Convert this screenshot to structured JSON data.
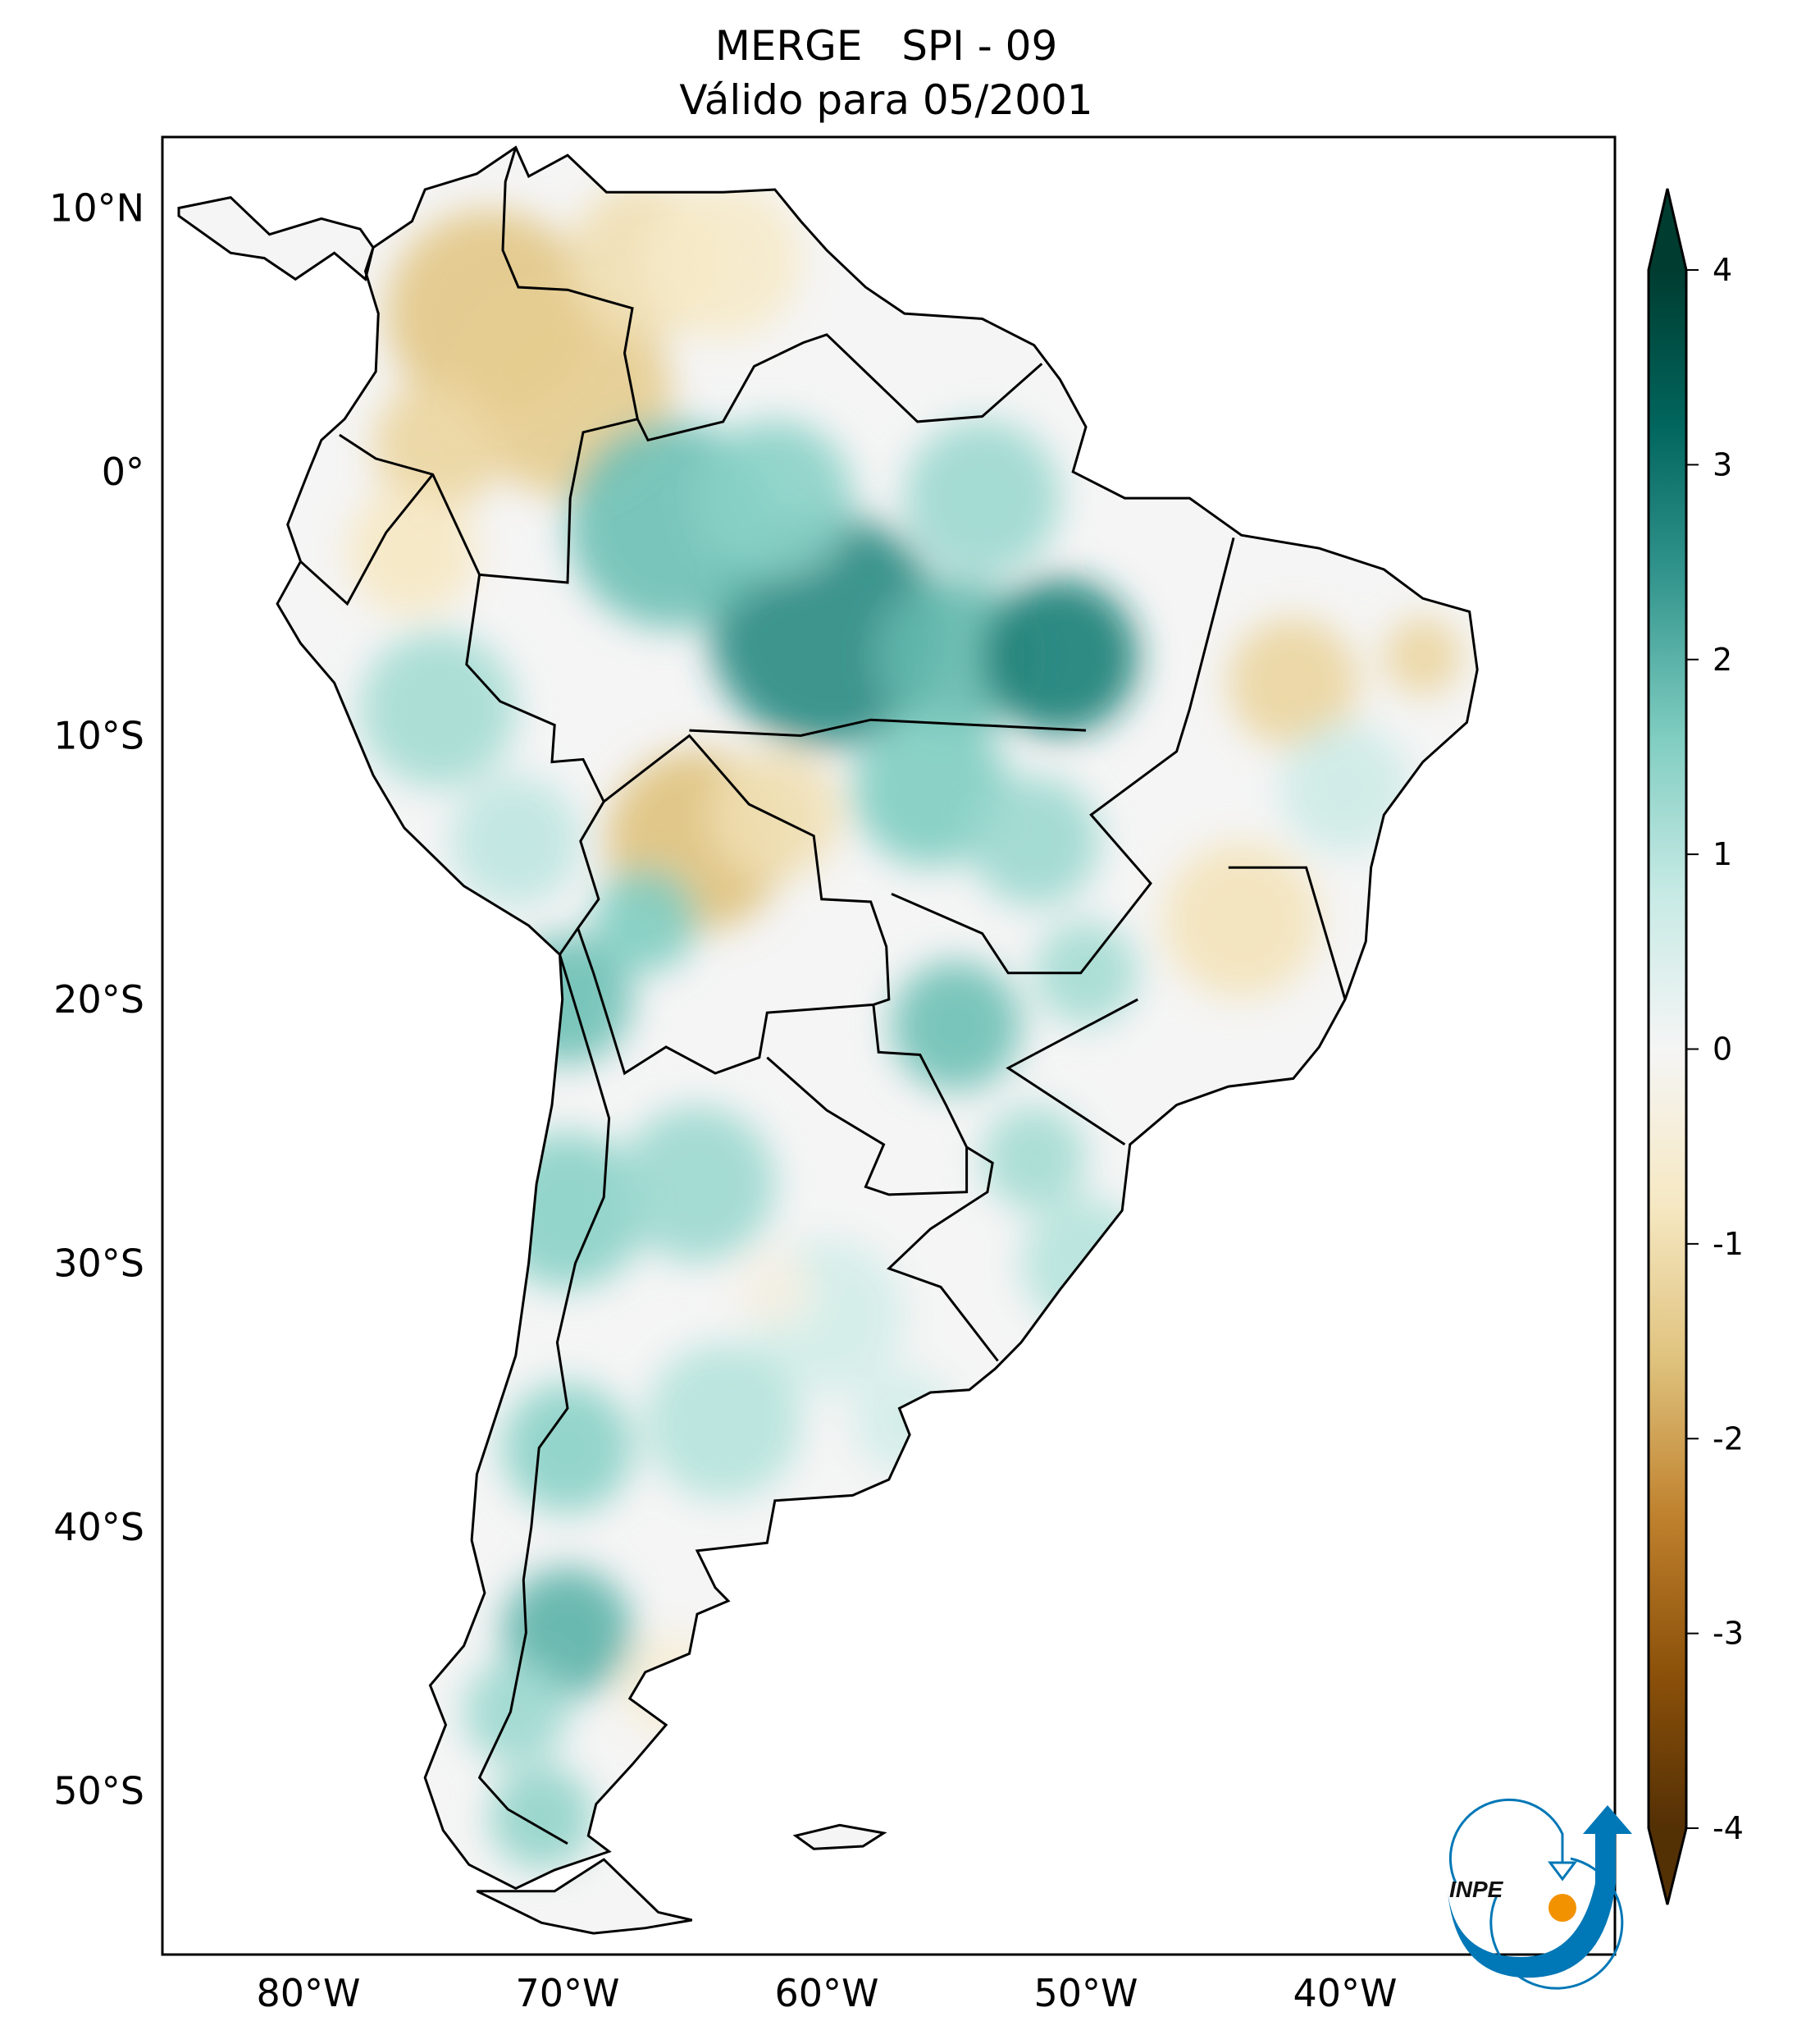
{
  "title": {
    "line1": "MERGE   SPI - 09",
    "line2": "Válido para 05/2001"
  },
  "chart_data": {
    "type": "heatmap",
    "title": "MERGE   SPI - 09",
    "subtitle": "Válido para 05/2001",
    "variable": "SPI - 09",
    "lat_ticks": [
      {
        "value": 10,
        "label": "10°N"
      },
      {
        "value": 0,
        "label": "0°"
      },
      {
        "value": -10,
        "label": "10°S"
      },
      {
        "value": -20,
        "label": "20°S"
      },
      {
        "value": -30,
        "label": "30°S"
      },
      {
        "value": -40,
        "label": "40°S"
      },
      {
        "value": -50,
        "label": "50°S"
      }
    ],
    "lon_ticks": [
      {
        "value": -80,
        "label": "80°W"
      },
      {
        "value": -70,
        "label": "70°W"
      },
      {
        "value": -60,
        "label": "60°W"
      },
      {
        "value": -50,
        "label": "50°W"
      },
      {
        "value": -40,
        "label": "40°W"
      }
    ],
    "lon_range": [
      -85,
      -29
    ],
    "lat_range": [
      -56,
      13
    ],
    "colorbar": {
      "colormap": "BrBG",
      "range": [
        -4,
        4
      ],
      "extend": "both",
      "ticks": [
        {
          "value": 4,
          "label": "4"
        },
        {
          "value": 3,
          "label": "3"
        },
        {
          "value": 2,
          "label": "2"
        },
        {
          "value": 1,
          "label": "1"
        },
        {
          "value": 0,
          "label": "0"
        },
        {
          "value": -1,
          "label": "-1"
        },
        {
          "value": -2,
          "label": "-2"
        },
        {
          "value": -3,
          "label": "-3"
        },
        {
          "value": -4,
          "label": "-4"
        }
      ],
      "colors": [
        "#543005",
        "#8c510a",
        "#bf812d",
        "#dfc27d",
        "#f6e8c3",
        "#f5f5f5",
        "#c7eae5",
        "#80cdc1",
        "#35978f",
        "#01665e",
        "#003c30"
      ]
    }
  },
  "logo": {
    "text": "INPE",
    "blue": "#0077b6",
    "orange": "#f39200"
  }
}
